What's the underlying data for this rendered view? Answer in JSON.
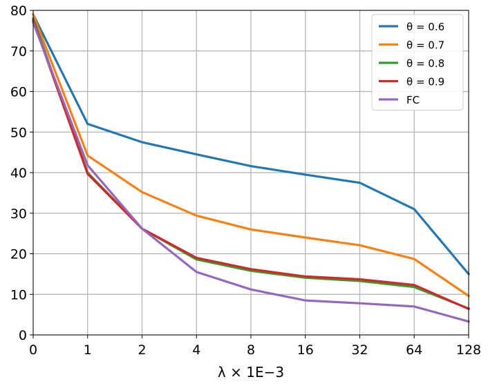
{
  "chart_data": {
    "type": "line",
    "title": "",
    "xlabel": "λ × 1E−3",
    "ylabel": "",
    "categories": [
      "0",
      "1",
      "2",
      "4",
      "8",
      "16",
      "32",
      "64",
      "128"
    ],
    "ylim": [
      0,
      80
    ],
    "yticks": [
      "0",
      "10",
      "20",
      "30",
      "40",
      "50",
      "60",
      "70",
      "80"
    ],
    "grid": true,
    "legend_position": "top-right",
    "series": [
      {
        "name": "θ = 0.6",
        "color": "#1f77b4",
        "values": [
          79,
          52,
          47.5,
          44.5,
          41.6,
          39.5,
          37.5,
          31,
          15
        ]
      },
      {
        "name": "θ = 0.7",
        "color": "#ff7f0e",
        "values": [
          79,
          44.2,
          35.2,
          29.4,
          26,
          24,
          22.1,
          18.7,
          9.6
        ]
      },
      {
        "name": "θ = 0.8",
        "color": "#2ca02c",
        "values": [
          78,
          40,
          26.2,
          18.6,
          15.8,
          14.1,
          13.3,
          11.8,
          6.5
        ]
      },
      {
        "name": "θ = 0.9",
        "color": "#d62728",
        "values": [
          77.5,
          39.7,
          26.2,
          19,
          16.2,
          14.4,
          13.7,
          12.3,
          6.4
        ]
      },
      {
        "name": "FC",
        "color": "#9467bd",
        "values": [
          77,
          41.8,
          26.2,
          15.5,
          11.2,
          8.5,
          7.8,
          7,
          3.3
        ]
      }
    ]
  }
}
